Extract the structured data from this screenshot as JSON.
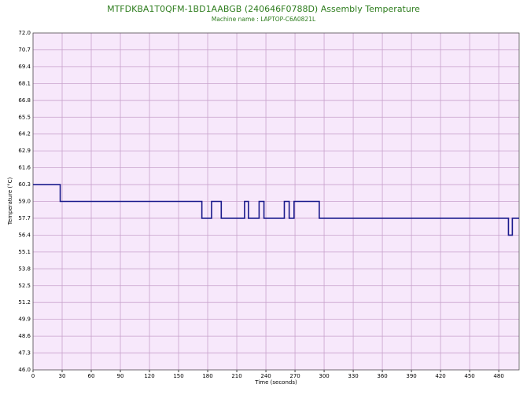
{
  "chart_data": {
    "type": "line",
    "title": "MTFDKBA1T0QFM-1BD1AABGB (240646F0788D) Assembly Temperature",
    "subtitle": "Machine name : LAPTOP-C6A0821L",
    "x_label": "Time (seconds)",
    "y_label": "Temperature (°C)",
    "xlim": [
      0,
      501
    ],
    "ylim": [
      46.0,
      72.0
    ],
    "xticks": [
      0,
      30,
      60,
      90,
      120,
      150,
      180,
      210,
      240,
      270,
      300,
      330,
      360,
      390,
      420,
      450,
      480
    ],
    "yticks": [
      {
        "value": 46.0,
        "label": "46.0"
      },
      47.3,
      48.6,
      49.9,
      51.2,
      52.5,
      53.8,
      55.1,
      56.4,
      57.7,
      {
        "value": 59.0,
        "label": "59.0"
      },
      60.3,
      61.6,
      62.9,
      64.2,
      65.5,
      66.8,
      68.1,
      69.4,
      70.7,
      {
        "value": 72.0,
        "label": "72.0"
      }
    ],
    "grid": true,
    "background": "#f7e8fb",
    "grid_color": "#c8a2cc",
    "series": [
      {
        "color": "#1a1a8c",
        "x": [
          0,
          28,
          28,
          174,
          174,
          184,
          184,
          194,
          194,
          218,
          218,
          222,
          222,
          233,
          233,
          238,
          238,
          259,
          259,
          264,
          264,
          269,
          269,
          295,
          295,
          490,
          490,
          494,
          494,
          501
        ],
        "values": [
          60.3,
          60.3,
          59.0,
          59.0,
          57.7,
          57.7,
          59.0,
          59.0,
          57.7,
          57.7,
          59.0,
          59.0,
          57.7,
          57.7,
          59.0,
          59.0,
          57.7,
          57.7,
          59.0,
          59.0,
          57.7,
          57.7,
          59.0,
          59.0,
          57.7,
          57.7,
          56.4,
          56.4,
          57.7,
          57.7
        ]
      }
    ]
  }
}
